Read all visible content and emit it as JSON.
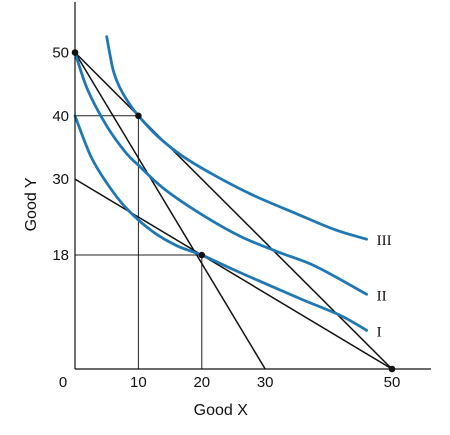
{
  "chart_data": {
    "type": "line",
    "title": "",
    "xlabel": "Good X",
    "ylabel": "Good Y",
    "xlim": [
      0,
      53
    ],
    "ylim": [
      0,
      58
    ],
    "origin_label": "0",
    "x_ticks": [
      {
        "value": 10,
        "label": "10"
      },
      {
        "value": 20,
        "label": "20"
      },
      {
        "value": 30,
        "label": "30"
      },
      {
        "value": 50,
        "label": "50"
      }
    ],
    "y_ticks": [
      {
        "value": 18,
        "label": "18"
      },
      {
        "value": 30,
        "label": "30"
      },
      {
        "value": 40,
        "label": "40"
      },
      {
        "value": 50,
        "label": "50"
      }
    ],
    "budget_lines": [
      {
        "from": [
          0,
          50
        ],
        "to": [
          50,
          0
        ]
      },
      {
        "from": [
          0,
          50
        ],
        "to": [
          30,
          0
        ]
      },
      {
        "from": [
          0,
          30
        ],
        "to": [
          50,
          0
        ]
      }
    ],
    "guide_lines": [
      {
        "from": [
          0,
          40
        ],
        "to": [
          10,
          40
        ]
      },
      {
        "from": [
          10,
          40
        ],
        "to": [
          10,
          0
        ]
      },
      {
        "from": [
          0,
          18
        ],
        "to": [
          20,
          18
        ]
      },
      {
        "from": [
          20,
          18
        ],
        "to": [
          20,
          0
        ]
      }
    ],
    "points": [
      {
        "x": 0,
        "y": 50
      },
      {
        "x": 10,
        "y": 40
      },
      {
        "x": 20,
        "y": 18
      },
      {
        "x": 50,
        "y": 0
      }
    ],
    "series": [
      {
        "name": "I",
        "color": "#1f77b4",
        "x": [
          0,
          2.5,
          5,
          8,
          12,
          16,
          20,
          25,
          30,
          36,
          42,
          46
        ],
        "y": [
          40,
          33.6,
          29.4,
          25.5,
          21.9,
          19.5,
          18,
          15.7,
          13.5,
          10.9,
          8.4,
          6.1
        ]
      },
      {
        "x": [
          0,
          2,
          5,
          8,
          10,
          14,
          20,
          26,
          32,
          38,
          46
        ],
        "y": [
          50,
          44.1,
          38.4,
          34.2,
          32.2,
          28.5,
          24.4,
          21,
          18.5,
          16.2,
          11.8
        ],
        "name": "II",
        "color": "#1f77b4"
      },
      {
        "name": "III",
        "color": "#1f77b4",
        "x": [
          5,
          6,
          7,
          8.5,
          10,
          13,
          17,
          22,
          28,
          35,
          41,
          46
        ],
        "y": [
          52.5,
          47.3,
          44.6,
          42,
          40,
          36.8,
          33.6,
          30.6,
          27.5,
          24.5,
          22,
          20.5
        ]
      }
    ]
  }
}
